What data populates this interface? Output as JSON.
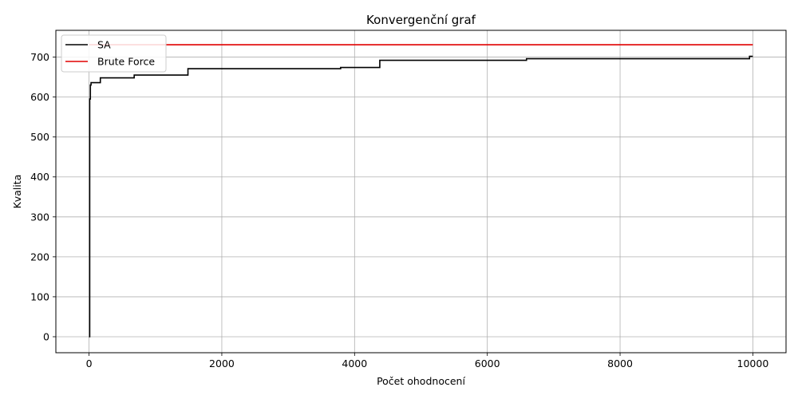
{
  "chart_data": {
    "type": "line",
    "title": "Konvergenční graf",
    "xlabel": "Počet ohodnocení",
    "ylabel": "Kvalita",
    "xlim": [
      -500,
      10500
    ],
    "ylim": [
      -40,
      767
    ],
    "xticks": [
      0,
      2000,
      4000,
      6000,
      8000,
      10000
    ],
    "xtick_labels": [
      "0",
      "2000",
      "4000",
      "6000",
      "8000",
      "10000"
    ],
    "yticks": [
      0,
      100,
      200,
      300,
      400,
      500,
      600,
      700
    ],
    "ytick_labels": [
      "0",
      "100",
      "200",
      "300",
      "400",
      "500",
      "600",
      "700"
    ],
    "grid": true,
    "legend_position": "top-left",
    "series": [
      {
        "name": "SA",
        "color": "#000000",
        "step": true,
        "x": [
          0,
          10,
          20,
          30,
          170,
          680,
          1490,
          3790,
          4380,
          6590,
          9950,
          10000
        ],
        "y": [
          0,
          595,
          630,
          636,
          648,
          655,
          671,
          674,
          692,
          696,
          702,
          702
        ]
      },
      {
        "name": "Brute Force",
        "color": "#e00000",
        "step": false,
        "x": [
          0,
          10000
        ],
        "y": [
          731,
          731
        ]
      }
    ]
  }
}
